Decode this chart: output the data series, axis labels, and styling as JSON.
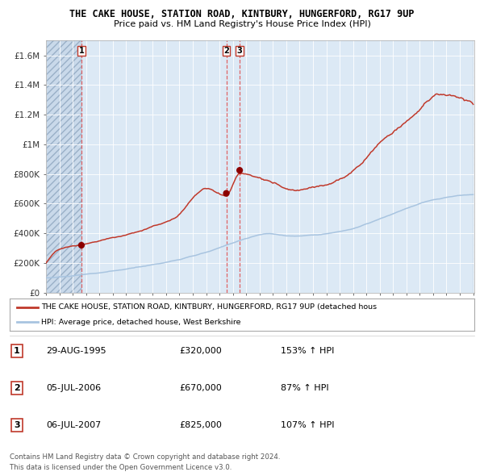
{
  "title1": "THE CAKE HOUSE, STATION ROAD, KINTBURY, HUNGERFORD, RG17 9UP",
  "title2": "Price paid vs. HM Land Registry's House Price Index (HPI)",
  "sale_dates_str": [
    "1995-08-29",
    "2006-07-05",
    "2007-07-06"
  ],
  "sale_prices": [
    320000,
    670000,
    825000
  ],
  "sale_labels": [
    "1",
    "2",
    "3"
  ],
  "sale_info": [
    [
      "1",
      "29-AUG-1995",
      "£320,000",
      "153% ↑ HPI"
    ],
    [
      "2",
      "05-JUL-2006",
      "£670,000",
      "87% ↑ HPI"
    ],
    [
      "3",
      "06-JUL-2007",
      "£825,000",
      "107% ↑ HPI"
    ]
  ],
  "legend_line1": "THE CAKE HOUSE, STATION ROAD, KINTBURY, HUNGERFORD, RG17 9UP (detached hous",
  "legend_line2": "HPI: Average price, detached house, West Berkshire",
  "hpi_color": "#a8c4e0",
  "price_color": "#c0392b",
  "marker_color": "#8b0000",
  "vline_color": "#e05555",
  "background_plot": "#dce9f5",
  "background_fig": "#ffffff",
  "ylim_max": 1700000,
  "yticks": [
    0,
    200000,
    400000,
    600000,
    800000,
    1000000,
    1200000,
    1400000,
    1600000
  ],
  "ylabels": [
    "£0",
    "£200K",
    "£400K",
    "£600K",
    "£800K",
    "£1M",
    "£1.2M",
    "£1.4M",
    "£1.6M"
  ],
  "footer1": "Contains HM Land Registry data © Crown copyright and database right 2024.",
  "footer2": "This data is licensed under the Open Government Licence v3.0."
}
